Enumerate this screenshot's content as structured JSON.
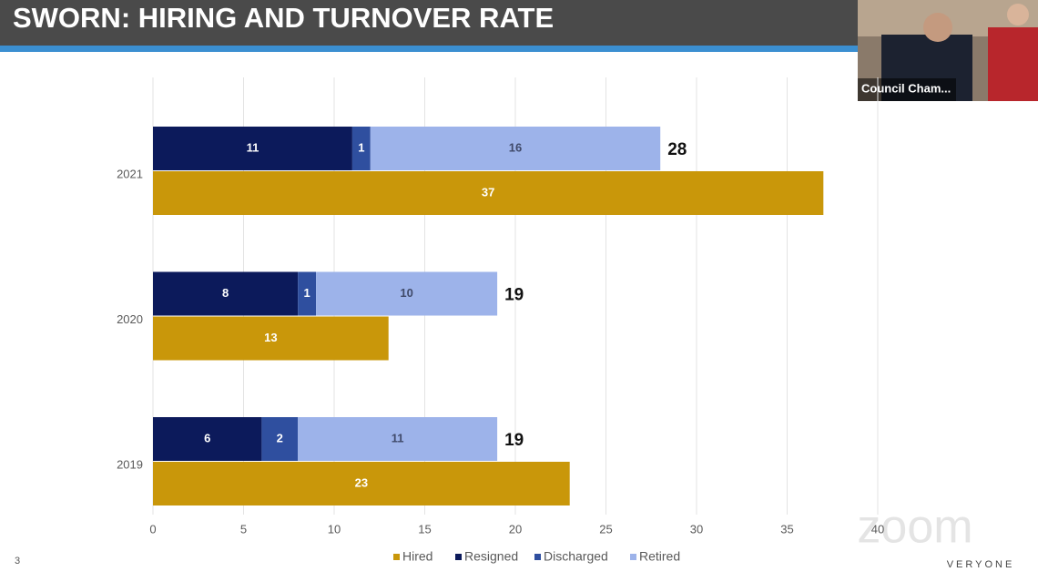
{
  "header": {
    "title": "SWORN: HIRING AND TURNOVER RATE"
  },
  "video": {
    "label": "Council Cham..."
  },
  "slide_number": "3",
  "watermark": {
    "logo": "zoom",
    "text": "VERYONE"
  },
  "chart_data": {
    "type": "bar",
    "orientation": "horizontal",
    "categories": [
      "2021",
      "2020",
      "2019"
    ],
    "series": [
      {
        "name": "Hired",
        "color": "#c9970a",
        "values": [
          37,
          13,
          23
        ]
      },
      {
        "name": "Resigned",
        "color": "#0c1a5b",
        "values": [
          11,
          8,
          6
        ]
      },
      {
        "name": "Discharged",
        "color": "#2f4f9f",
        "values": [
          1,
          1,
          2
        ]
      },
      {
        "name": "Retired",
        "color": "#9db3ea",
        "values": [
          16,
          10,
          11
        ]
      }
    ],
    "turnover_totals": [
      28,
      19,
      19
    ],
    "xlim": [
      0,
      40
    ],
    "xticks": [
      0,
      5,
      10,
      15,
      20,
      25,
      30,
      35,
      40
    ],
    "grid": true,
    "legend": "bottom"
  }
}
